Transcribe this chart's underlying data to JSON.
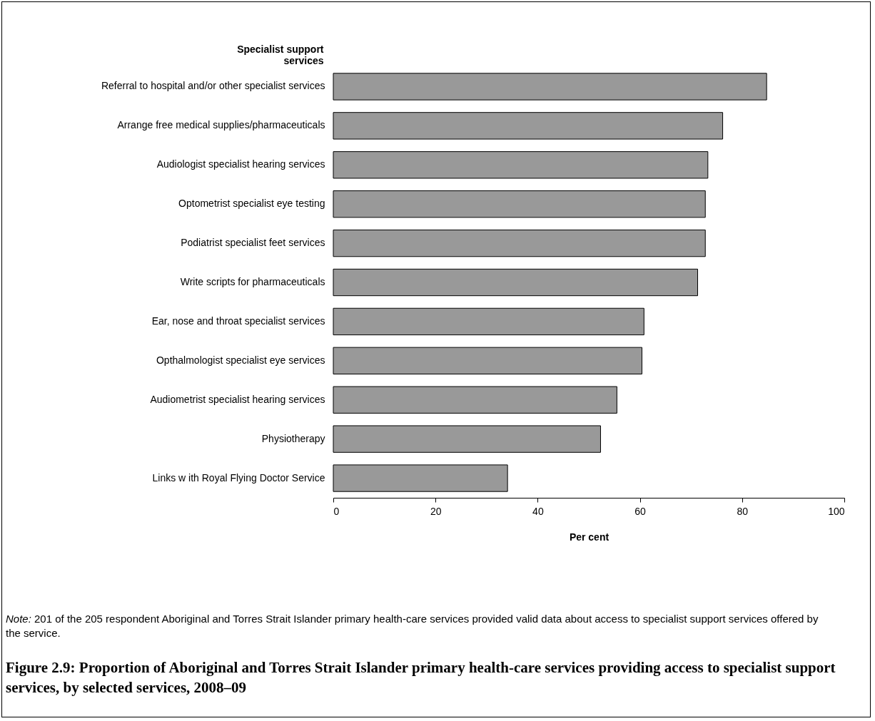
{
  "chart_data": {
    "type": "bar",
    "orientation": "horizontal",
    "title": "Figure 2.9: Proportion of Aboriginal and Torres Strait Islander primary health-care services providing access to specialist support services, by selected services, 2008–09",
    "ylabel": "Specialist support services",
    "xlabel": "Per cent",
    "categories": [
      "Referral to hospital and/or other specialist services",
      "Arrange free medical supplies/pharmaceuticals",
      "Audiologist specialist hearing services",
      "Optometrist specialist eye testing",
      "Podiatrist specialist feet services",
      "Write scripts for pharmaceuticals",
      "Ear, nose and throat specialist services",
      "Opthalmologist specialist eye services",
      "Audiometrist specialist hearing services",
      "Physiotherapy",
      "Links w ith Royal Flying Doctor Service"
    ],
    "values": [
      84.8,
      76.2,
      73.3,
      72.8,
      72.8,
      71.3,
      60.8,
      60.4,
      55.5,
      52.3,
      34.1
    ],
    "color": "#999999",
    "xlim": [
      0,
      100
    ],
    "xticks": [
      0,
      20,
      40,
      60,
      80,
      100
    ],
    "grid": false,
    "annotations": [
      "Note: 201 of the 205 respondent Aboriginal and Torres Strait Islander primary health-care services provided valid data about access to specialist support services offered by the service."
    ]
  }
}
